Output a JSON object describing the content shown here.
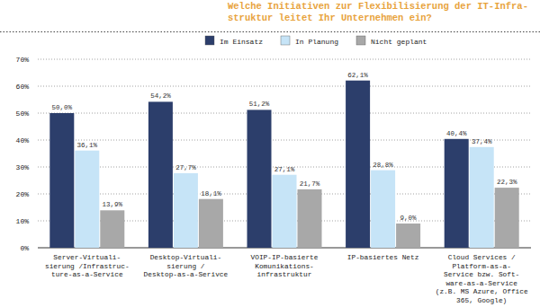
{
  "chart_data": {
    "type": "bar",
    "title": "Welche Initiativen zur Flexibilisierung der IT-Infra-\nstruktur leitet Ihr Unternehmen ein?",
    "categories": [
      "Server-Virtuali-\nsierung /Infrastruc-\nture-as-a-Service",
      "Desktop-Virtuali-\nsierung /\nDesktop-as-a-Serivce",
      "VOIP-IP-basierte\nKomunikations-\ninfrastruktur",
      "IP-basiertes Netz",
      "Cloud Services /\nPlatform-as-a-\nService bzw. Soft-\nware-as-a-Service\n(z.B. MS Azure, Office\n365, Google)"
    ],
    "series": [
      {
        "name": "Im Einsatz",
        "color": "#2c3e6b",
        "values": [
          50.0,
          54.2,
          51.2,
          62.1,
          40.4
        ],
        "value_labels": [
          "50,0%",
          "54,2%",
          "51,2%",
          "62,1%",
          "40,4%"
        ]
      },
      {
        "name": "In Planung",
        "color": "#c6e4f7",
        "values": [
          36.1,
          27.7,
          27.1,
          28.8,
          37.4
        ],
        "value_labels": [
          "36,1%",
          "27,7%",
          "27,1%",
          "28,8%",
          "37,4%"
        ]
      },
      {
        "name": "Nicht geplant",
        "color": "#a8a8a8",
        "values": [
          13.9,
          18.1,
          21.7,
          9.0,
          22.3
        ],
        "value_labels": [
          "13,9%",
          "18,1%",
          "21,7%",
          "9,0%",
          "22,3%"
        ]
      }
    ],
    "ylim": [
      0,
      70
    ],
    "yticks": [
      {
        "value": 0,
        "label": "0%"
      },
      {
        "value": 10,
        "label": "10%"
      },
      {
        "value": 20,
        "label": "20%"
      },
      {
        "value": 30,
        "label": "30%"
      },
      {
        "value": 40,
        "label": "40%"
      },
      {
        "value": 50,
        "label": "50%"
      },
      {
        "value": 60,
        "label": "60%"
      },
      {
        "value": 70,
        "label": "70%"
      }
    ],
    "grid": true,
    "legend": "top",
    "data_labels": true
  }
}
